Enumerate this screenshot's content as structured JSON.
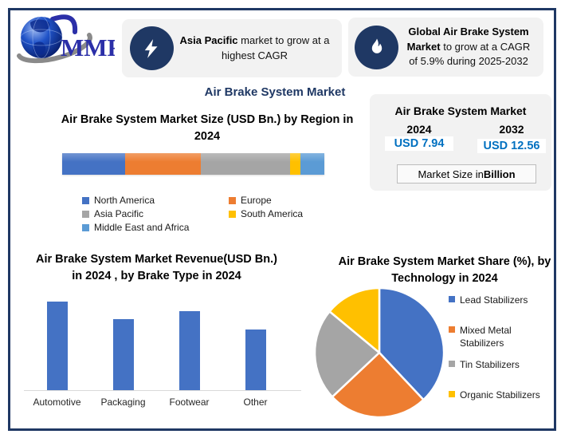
{
  "brand": {
    "logo_text": "MMR"
  },
  "header": {
    "callout_asia": {
      "bold": "Asia Pacific",
      "rest": " market to grow at a highest CAGR",
      "icon": "lightning-icon"
    },
    "callout_global": {
      "bold": "Global Air Brake System Market",
      "rest": " to grow at a CAGR of 5.9% during 2025-2032",
      "icon": "flame-icon"
    }
  },
  "main_title": "Air Brake System Market",
  "stats_panel": {
    "title": "Air Brake System Market",
    "cols": [
      {
        "year": "2024",
        "value": "USD 7.94"
      },
      {
        "year": "2032",
        "value": "USD 12.56"
      }
    ],
    "note_prefix": "Market Size in ",
    "note_bold": "Billion",
    "value_color": "#0070C0",
    "background": "#F2F2F2"
  },
  "colors": {
    "navy": "#1F3864",
    "value_blue": "#0070C0",
    "bar_blue": "#4472C4",
    "panel_gray": "#F2F2F2"
  },
  "chart_data": [
    {
      "type": "bar",
      "variant": "horizontal-stacked",
      "title": "Air Brake System Market Size (USD Bn.) by Region in 2024",
      "categories": [
        "North America",
        "Europe",
        "Asia Pacific",
        "South America",
        "Middle East and Africa"
      ],
      "values_pct": [
        24,
        29,
        34,
        4,
        9
      ],
      "colors": [
        "#4472C4",
        "#ED7D31",
        "#A5A5A5",
        "#FFC000",
        "#5B9BD5"
      ],
      "legend_position": "bottom",
      "axes_visible": false
    },
    {
      "type": "bar",
      "title": "Air Brake System Market Revenue(USD Bn.) in 2024 , by Brake Type in 2024",
      "categories": [
        "Automotive",
        "Packaging",
        "Footwear",
        "Other"
      ],
      "values": [
        4.5,
        3.6,
        4.0,
        3.1
      ],
      "ylabel": "",
      "xlabel": "",
      "ylim": [
        0,
        4.9
      ],
      "bar_color": "#4472C4",
      "axes_visible": false,
      "note": "values estimated from bar heights; no value axis shown"
    },
    {
      "type": "pie",
      "title": "Air Brake System Market Share (%), by Technology in 2024",
      "labels": [
        "Lead Stabilizers",
        "Mixed Metal Stabilizers",
        "Tin Stabilizers",
        "Organic Stabilizers"
      ],
      "values": [
        38,
        25,
        23,
        14
      ],
      "colors": [
        "#4472C4",
        "#ED7D31",
        "#A5A5A5",
        "#FFC000"
      ],
      "start_angle_deg": 0,
      "direction": "clockwise",
      "legend_position": "right",
      "note": "percentages estimated from slice angles; no data labels shown"
    }
  ]
}
